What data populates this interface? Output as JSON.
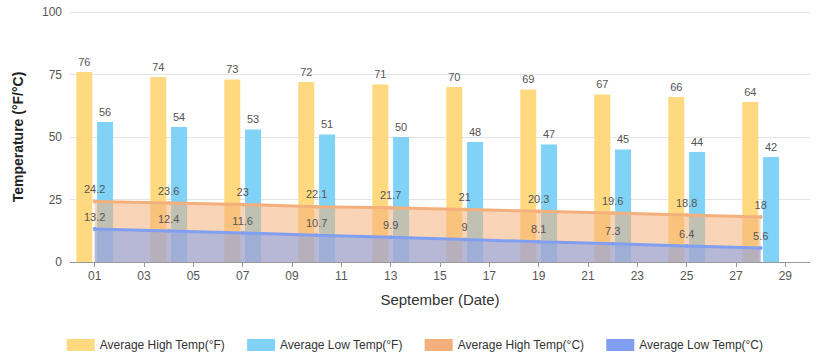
{
  "chart_data": {
    "type": "bar",
    "x_label": "September (Date)",
    "y_label": "Temperature (°F/°C)",
    "x": [
      1,
      4,
      7,
      10,
      13,
      16,
      19,
      22,
      25,
      28
    ],
    "xlim": [
      0,
      30
    ],
    "xticks": [
      {
        "value": 1,
        "label": "01"
      },
      {
        "value": 3,
        "label": "03"
      },
      {
        "value": 5,
        "label": "05"
      },
      {
        "value": 7,
        "label": "07"
      },
      {
        "value": 9,
        "label": "09"
      },
      11,
      13,
      15,
      17,
      19,
      21,
      23,
      25,
      27,
      29
    ],
    "ylim": [
      0,
      100
    ],
    "yticks": [
      0,
      25,
      50,
      75,
      100
    ],
    "grid": true,
    "legend": "bottom",
    "data_labels": true,
    "series": [
      {
        "name": "Average High Temp(°F)",
        "type": "bar",
        "color": "#ffd97f",
        "values": [
          76,
          74,
          73,
          72,
          71,
          70,
          69,
          67,
          66,
          64
        ]
      },
      {
        "name": "Average Low Temp(°F)",
        "type": "bar",
        "color": "#80d2f6",
        "values": [
          56,
          54,
          53,
          51,
          50,
          48,
          47,
          45,
          44,
          42
        ]
      },
      {
        "name": "Average High Temp(°C)",
        "type": "area",
        "color": "#f4b07c",
        "marker": "circle",
        "values": [
          24.2,
          23.6,
          23,
          22.1,
          21.7,
          21,
          20.3,
          19.6,
          18.8,
          18
        ]
      },
      {
        "name": "Average Low Temp(°C)",
        "type": "area",
        "color": "#819ff0",
        "marker": "circle",
        "values": [
          13.2,
          12.4,
          11.6,
          10.7,
          9.9,
          9,
          8.1,
          7.3,
          6.4,
          5.6
        ]
      }
    ]
  }
}
